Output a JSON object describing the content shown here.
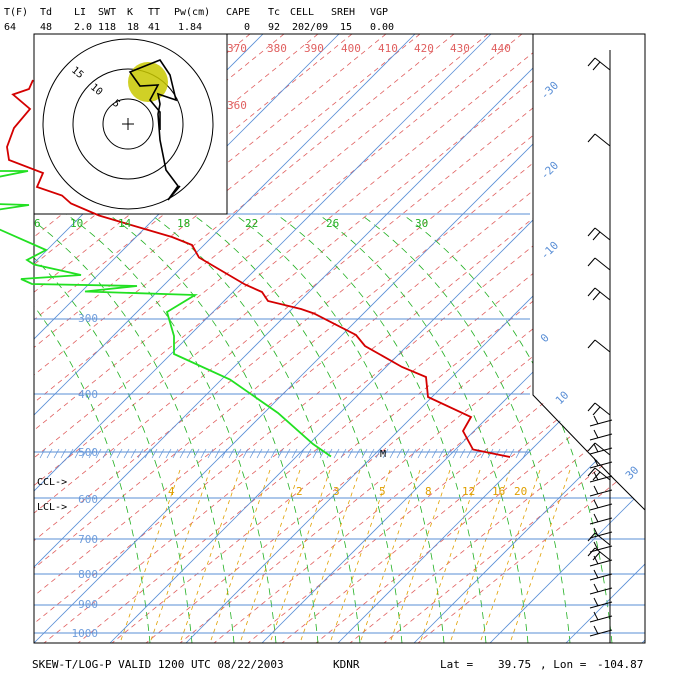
{
  "header": {
    "labels": [
      "T(F)",
      "Td",
      "LI",
      "SWT",
      "K",
      "TT",
      "Pw(cm)",
      "CAPE",
      "Tc",
      "CELL",
      "SREH",
      "VGP"
    ],
    "values": [
      "64",
      "48",
      "2.0",
      "118",
      "18",
      "41",
      "1.84",
      "0",
      "92",
      "202/09",
      "15",
      "0.00"
    ]
  },
  "footer": {
    "title": "SKEW-T/LOG-P VALID 1200 UTC 08/22/2003",
    "station": "KDNR",
    "lat_label": "Lat =",
    "lat_value": "39.75",
    "lon_label": ", Lon =",
    "lon_value": "-104.87"
  },
  "markers": {
    "ccl": "CCL->",
    "lcl": "LCL->",
    "m": "M"
  },
  "colors": {
    "temperature": "#d40000",
    "dewpoint": "#22e022",
    "isotherm": "#5a8fd6",
    "isobar": "#5a8fd6",
    "dry_adiabat": "#e06060",
    "moist_adiabat": "#22b022",
    "mixing_ratio": "#e0a000",
    "hodograph_circle": "#c8c800"
  },
  "chart_data": [
    {
      "type": "line",
      "title": "SKEW-T/LOG-P",
      "pressure_ticks": [
        300,
        400,
        500,
        600,
        700,
        800,
        900,
        1000
      ],
      "isotherm_labels": [
        "-30",
        "-20",
        "-10",
        "0",
        "10",
        "30"
      ],
      "theta_labels": [
        "370",
        "380",
        "390",
        "400",
        "410",
        "420",
        "430",
        "440",
        "360"
      ],
      "theta_e_labels": [
        "6",
        "10",
        "14",
        "18",
        "22",
        "26",
        "30"
      ],
      "mixing_ratio_labels": [
        "4",
        "2",
        "3",
        "5",
        "8",
        "12",
        "16",
        "20"
      ],
      "series": [
        {
          "x": [
            28.3,
            24.6,
            23.6,
            24.4,
            20.1,
            19.9,
            17.5,
            13.8,
            12.9,
            8.7,
            7.4,
            4.1,
            3.5,
            1.8,
            -2.8,
            -3.5,
            -5.5,
            -10.1,
            -12.8,
            -15.6,
            -16.5,
            -19.0,
            -18.4,
            -21.8,
            -22.0,
            -21.3,
            -19.7,
            -21.4,
            -19.8,
            -19.4
          ],
          "y": [
            840,
            825,
            788,
            760,
            720,
            680,
            660,
            618,
            596,
            553,
            544,
            528,
            510,
            495,
            441,
            416,
            400,
            373,
            357,
            333,
            317,
            300,
            272,
            246,
            220,
            182,
            144,
            115,
            104,
            86
          ]
        },
        {
          "x": [
            10.4,
            8.6,
            5.1,
            0.3,
            -5.3,
            -5.3,
            -6.0,
            -3.2,
            -14.2,
            -9.0,
            -19.5,
            -20.6,
            -14.6,
            -19.3,
            -20.0,
            -18.1,
            -24.1,
            -24.7,
            -19.8,
            -25.4,
            -27.3,
            -29.5,
            -19.9,
            -26.0
          ],
          "y": [
            839,
            814,
            752,
            685,
            634,
            598,
            550,
            516,
            509,
            498,
            494,
            484,
            476,
            455,
            446,
            426,
            373,
            333,
            336,
            353,
            333,
            306,
            268,
            268
          ]
        }
      ]
    },
    {
      "type": "scatter",
      "title": "hodograph",
      "ring_labels": [
        "15",
        "10",
        "5"
      ],
      "cell": "202/09"
    }
  ]
}
